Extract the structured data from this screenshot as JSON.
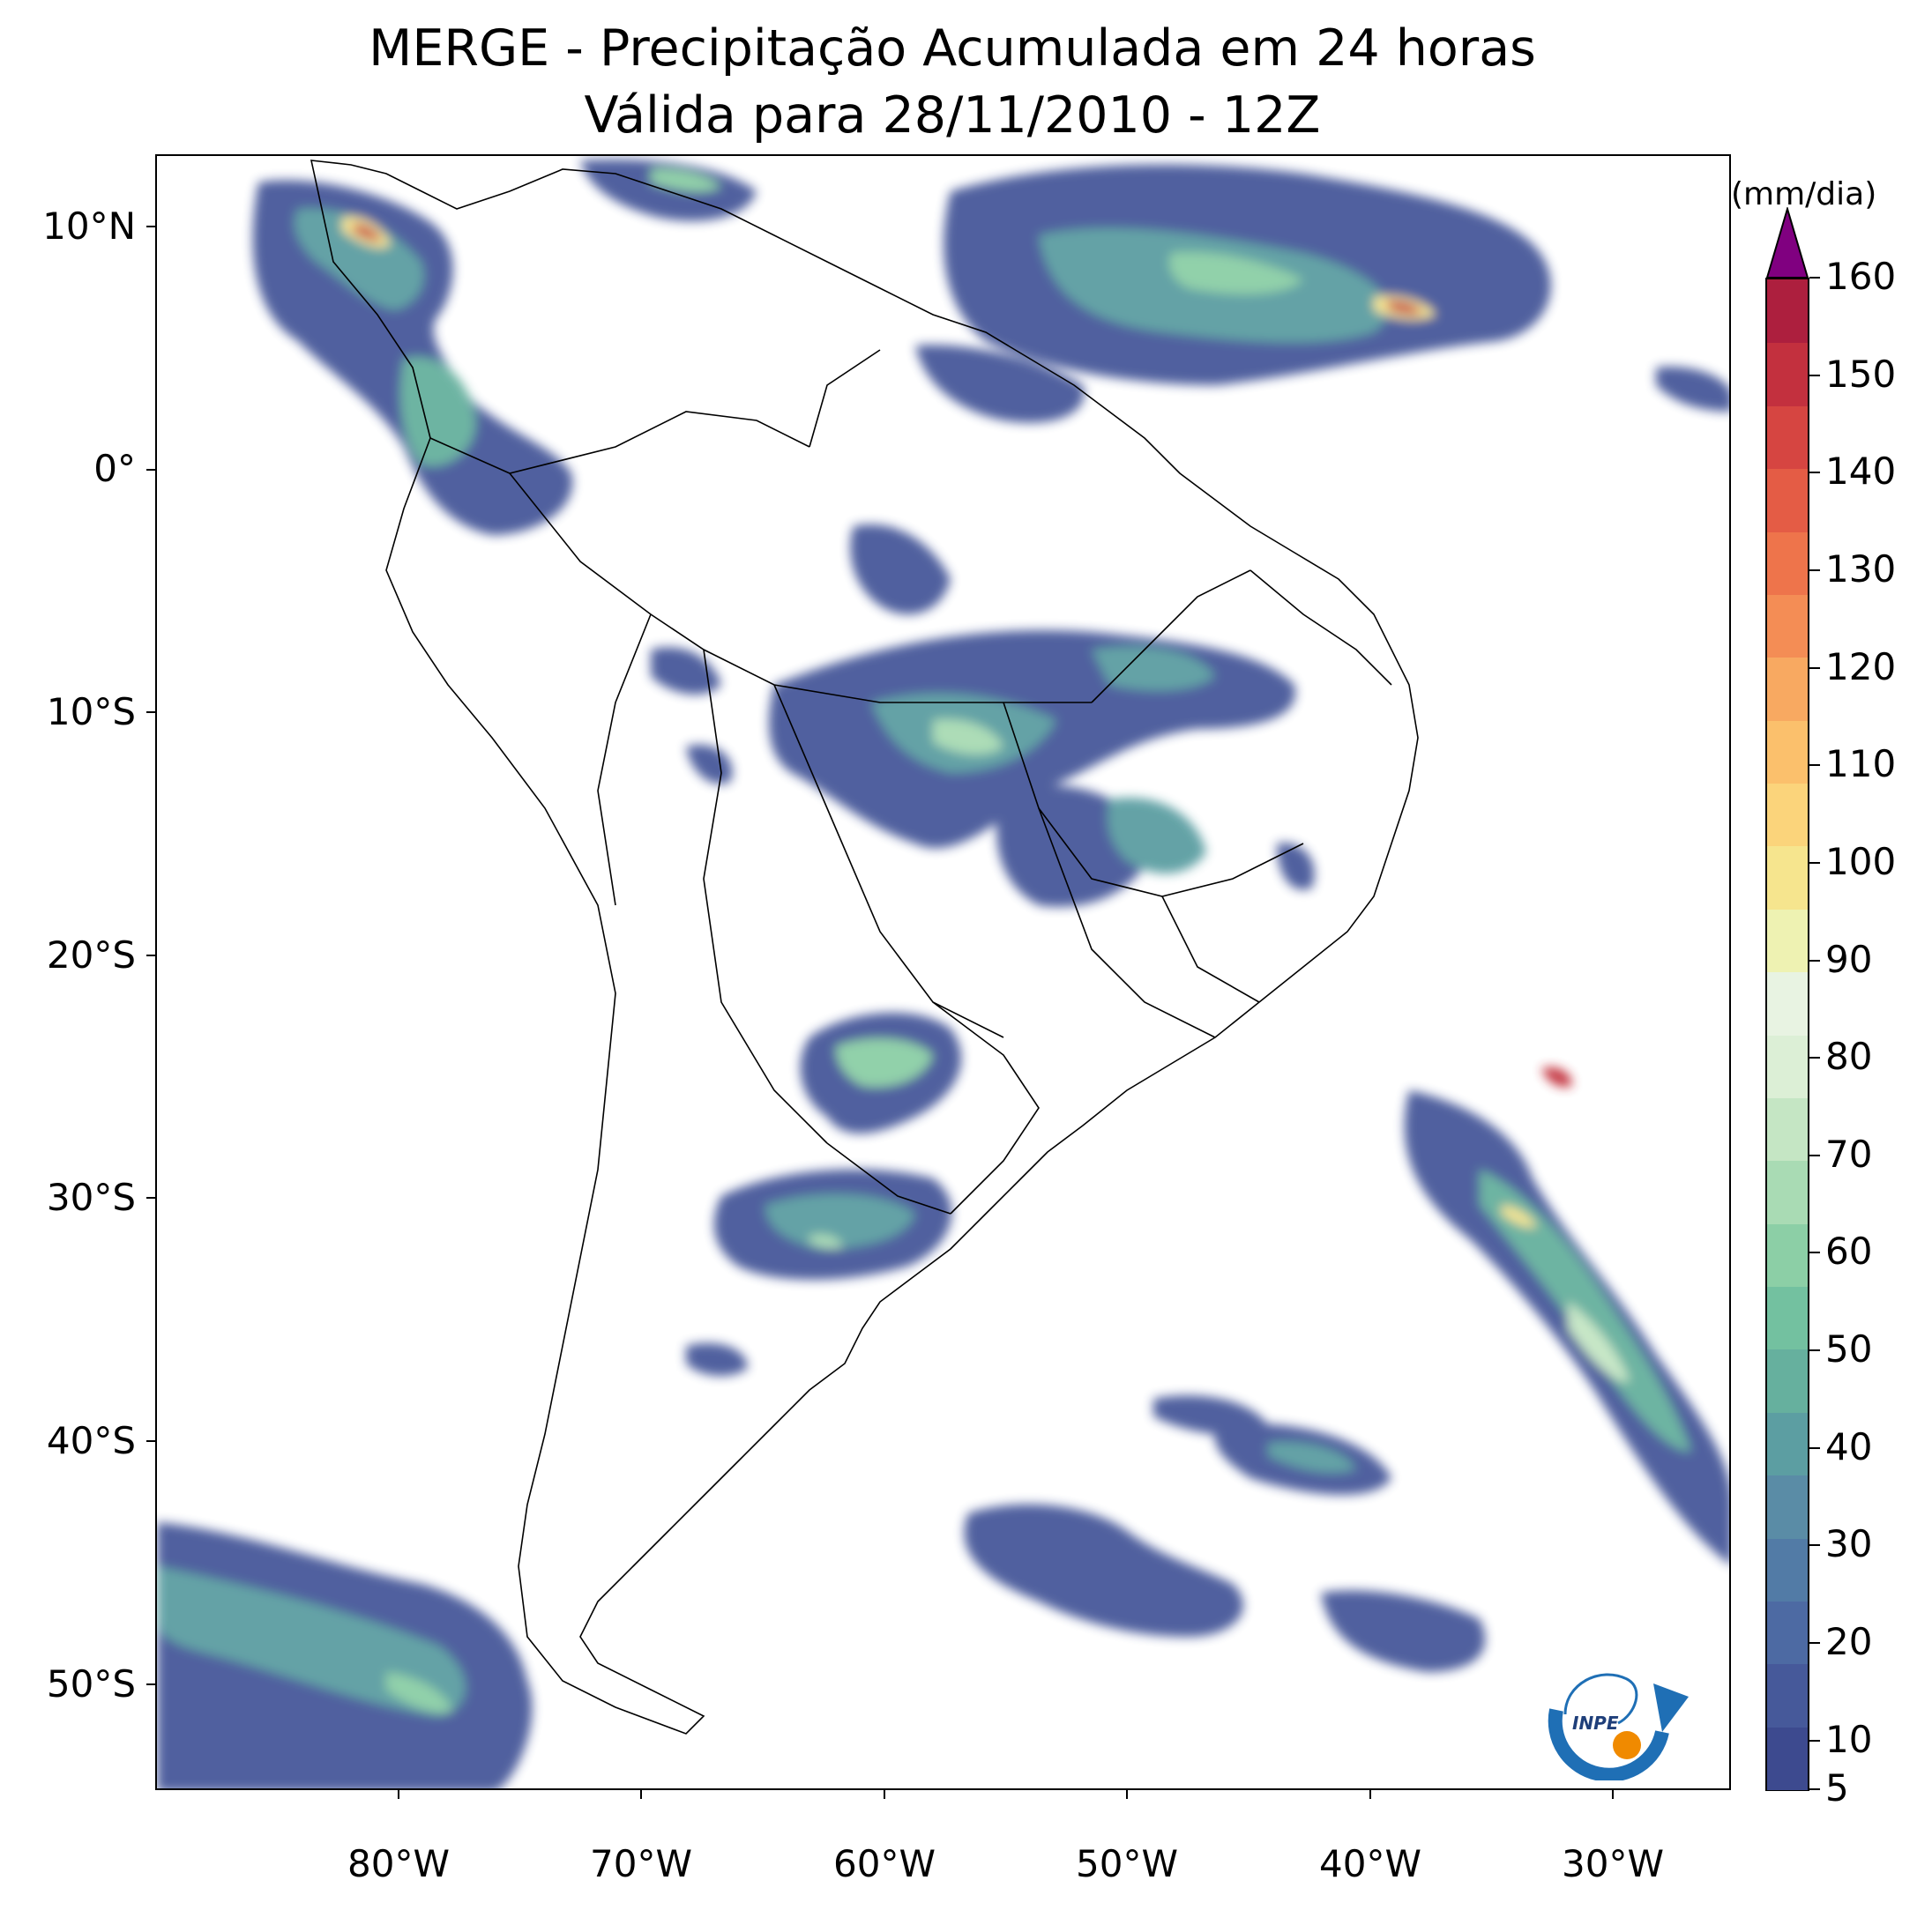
{
  "title": {
    "line1": "MERGE - Precipitação Acumulada em 24 horas",
    "line2": "Válida para 28/11/2010 - 12Z"
  },
  "axes": {
    "lat_labels": [
      "10°N",
      "0°",
      "10°S",
      "20°S",
      "30°S",
      "40°S",
      "50°S"
    ],
    "lon_labels": [
      "80°W",
      "70°W",
      "60°W",
      "50°W",
      "40°W",
      "30°W"
    ],
    "lat_range": [
      -56,
      13
    ],
    "lon_range": [
      -90,
      -25
    ]
  },
  "colorbar": {
    "units": "(mm/dia)",
    "tick_labels": [
      "5",
      "10",
      "20",
      "30",
      "40",
      "50",
      "60",
      "70",
      "80",
      "90",
      "100",
      "110",
      "120",
      "130",
      "140",
      "150",
      "160"
    ],
    "extend": "max",
    "colors": [
      "#3d4a8f",
      "#46599a",
      "#4d6aa3",
      "#527ba6",
      "#5a8ca6",
      "#5c9ea2",
      "#66b09e",
      "#73c1a0",
      "#8ccfa6",
      "#a9dbb4",
      "#c5e6c4",
      "#dcefd6",
      "#e8f3e2",
      "#eef2b2",
      "#f6e58e",
      "#fbd47b",
      "#fbc06c",
      "#f8a961",
      "#f48d55",
      "#ee744b",
      "#e45c45",
      "#d64541",
      "#c3303e",
      "#ad1f3e",
      "#800080"
    ]
  },
  "logo": {
    "text": "INPE"
  }
}
